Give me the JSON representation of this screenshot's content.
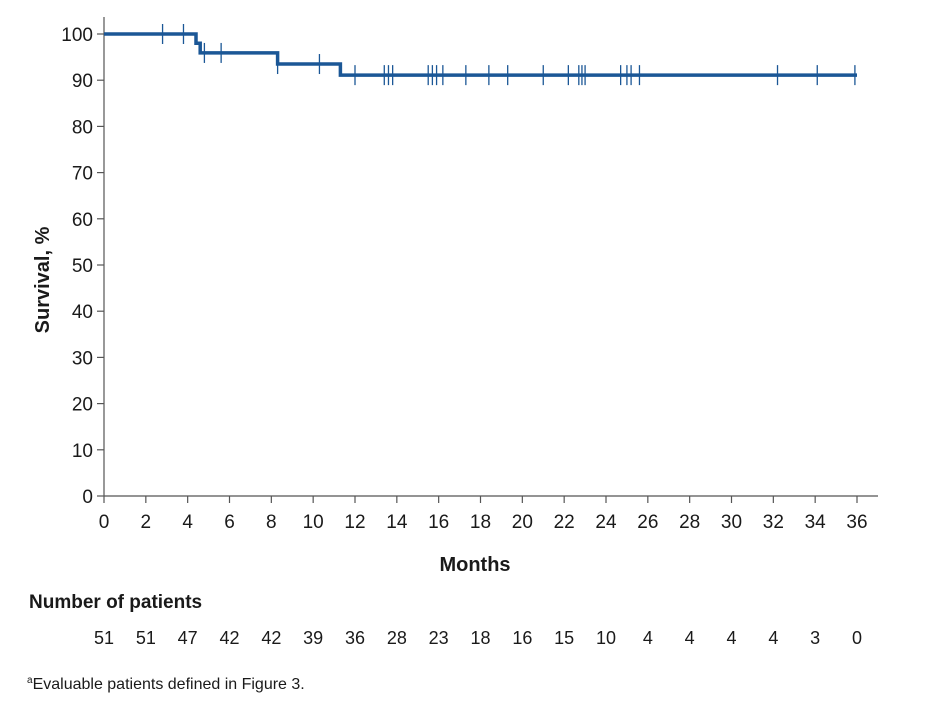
{
  "chart_data": {
    "type": "line",
    "ylabel": "Survival, %",
    "xlabel": "Months",
    "xlim": [
      0,
      36
    ],
    "ylim": [
      0,
      100
    ],
    "x_ticks": [
      "0",
      "2",
      "4",
      "6",
      "8",
      "10",
      "12",
      "14",
      "16",
      "18",
      "20",
      "22",
      "24",
      "26",
      "28",
      "30",
      "32",
      "34",
      "36"
    ],
    "y_ticks": [
      "0",
      "10",
      "20",
      "30",
      "40",
      "50",
      "60",
      "70",
      "80",
      "90",
      "100"
    ],
    "grid": false,
    "series": [
      {
        "color": "#1b5796",
        "step_points": [
          {
            "x": 0,
            "y": 100
          },
          {
            "x": 4.4,
            "y": 100
          },
          {
            "x": 4.4,
            "y": 98
          },
          {
            "x": 4.6,
            "y": 98
          },
          {
            "x": 4.6,
            "y": 95.9
          },
          {
            "x": 8.3,
            "y": 95.9
          },
          {
            "x": 8.3,
            "y": 93.5
          },
          {
            "x": 11.3,
            "y": 93.5
          },
          {
            "x": 11.3,
            "y": 91.1
          },
          {
            "x": 36,
            "y": 91.1
          }
        ],
        "censor_marks": [
          {
            "x": 2.8,
            "y": 100
          },
          {
            "x": 3.8,
            "y": 100
          },
          {
            "x": 4.8,
            "y": 95.9
          },
          {
            "x": 5.6,
            "y": 95.9
          },
          {
            "x": 8.3,
            "y": 93.5
          },
          {
            "x": 10.3,
            "y": 93.5
          },
          {
            "x": 12.0,
            "y": 91.1
          },
          {
            "x": 13.4,
            "y": 91.1
          },
          {
            "x": 13.6,
            "y": 91.1
          },
          {
            "x": 13.8,
            "y": 91.1
          },
          {
            "x": 15.5,
            "y": 91.1
          },
          {
            "x": 15.7,
            "y": 91.1
          },
          {
            "x": 15.9,
            "y": 91.1
          },
          {
            "x": 16.2,
            "y": 91.1
          },
          {
            "x": 17.3,
            "y": 91.1
          },
          {
            "x": 18.4,
            "y": 91.1
          },
          {
            "x": 19.3,
            "y": 91.1
          },
          {
            "x": 21.0,
            "y": 91.1
          },
          {
            "x": 22.2,
            "y": 91.1
          },
          {
            "x": 22.7,
            "y": 91.1
          },
          {
            "x": 22.85,
            "y": 91.1
          },
          {
            "x": 23.0,
            "y": 91.1
          },
          {
            "x": 24.7,
            "y": 91.1
          },
          {
            "x": 25.0,
            "y": 91.1
          },
          {
            "x": 25.2,
            "y": 91.1
          },
          {
            "x": 25.6,
            "y": 91.1
          },
          {
            "x": 32.2,
            "y": 91.1
          },
          {
            "x": 34.1,
            "y": 91.1
          },
          {
            "x": 35.9,
            "y": 91.1
          }
        ]
      }
    ],
    "number_at_risk": {
      "title": "Number of patients",
      "values": [
        "51",
        "51",
        "47",
        "42",
        "42",
        "39",
        "36",
        "28",
        "23",
        "18",
        "16",
        "15",
        "10",
        "4",
        "4",
        "4",
        "4",
        "3",
        "0"
      ]
    },
    "footnote": {
      "marker": "a",
      "text": "Evaluable patients defined in Figure 3."
    }
  }
}
